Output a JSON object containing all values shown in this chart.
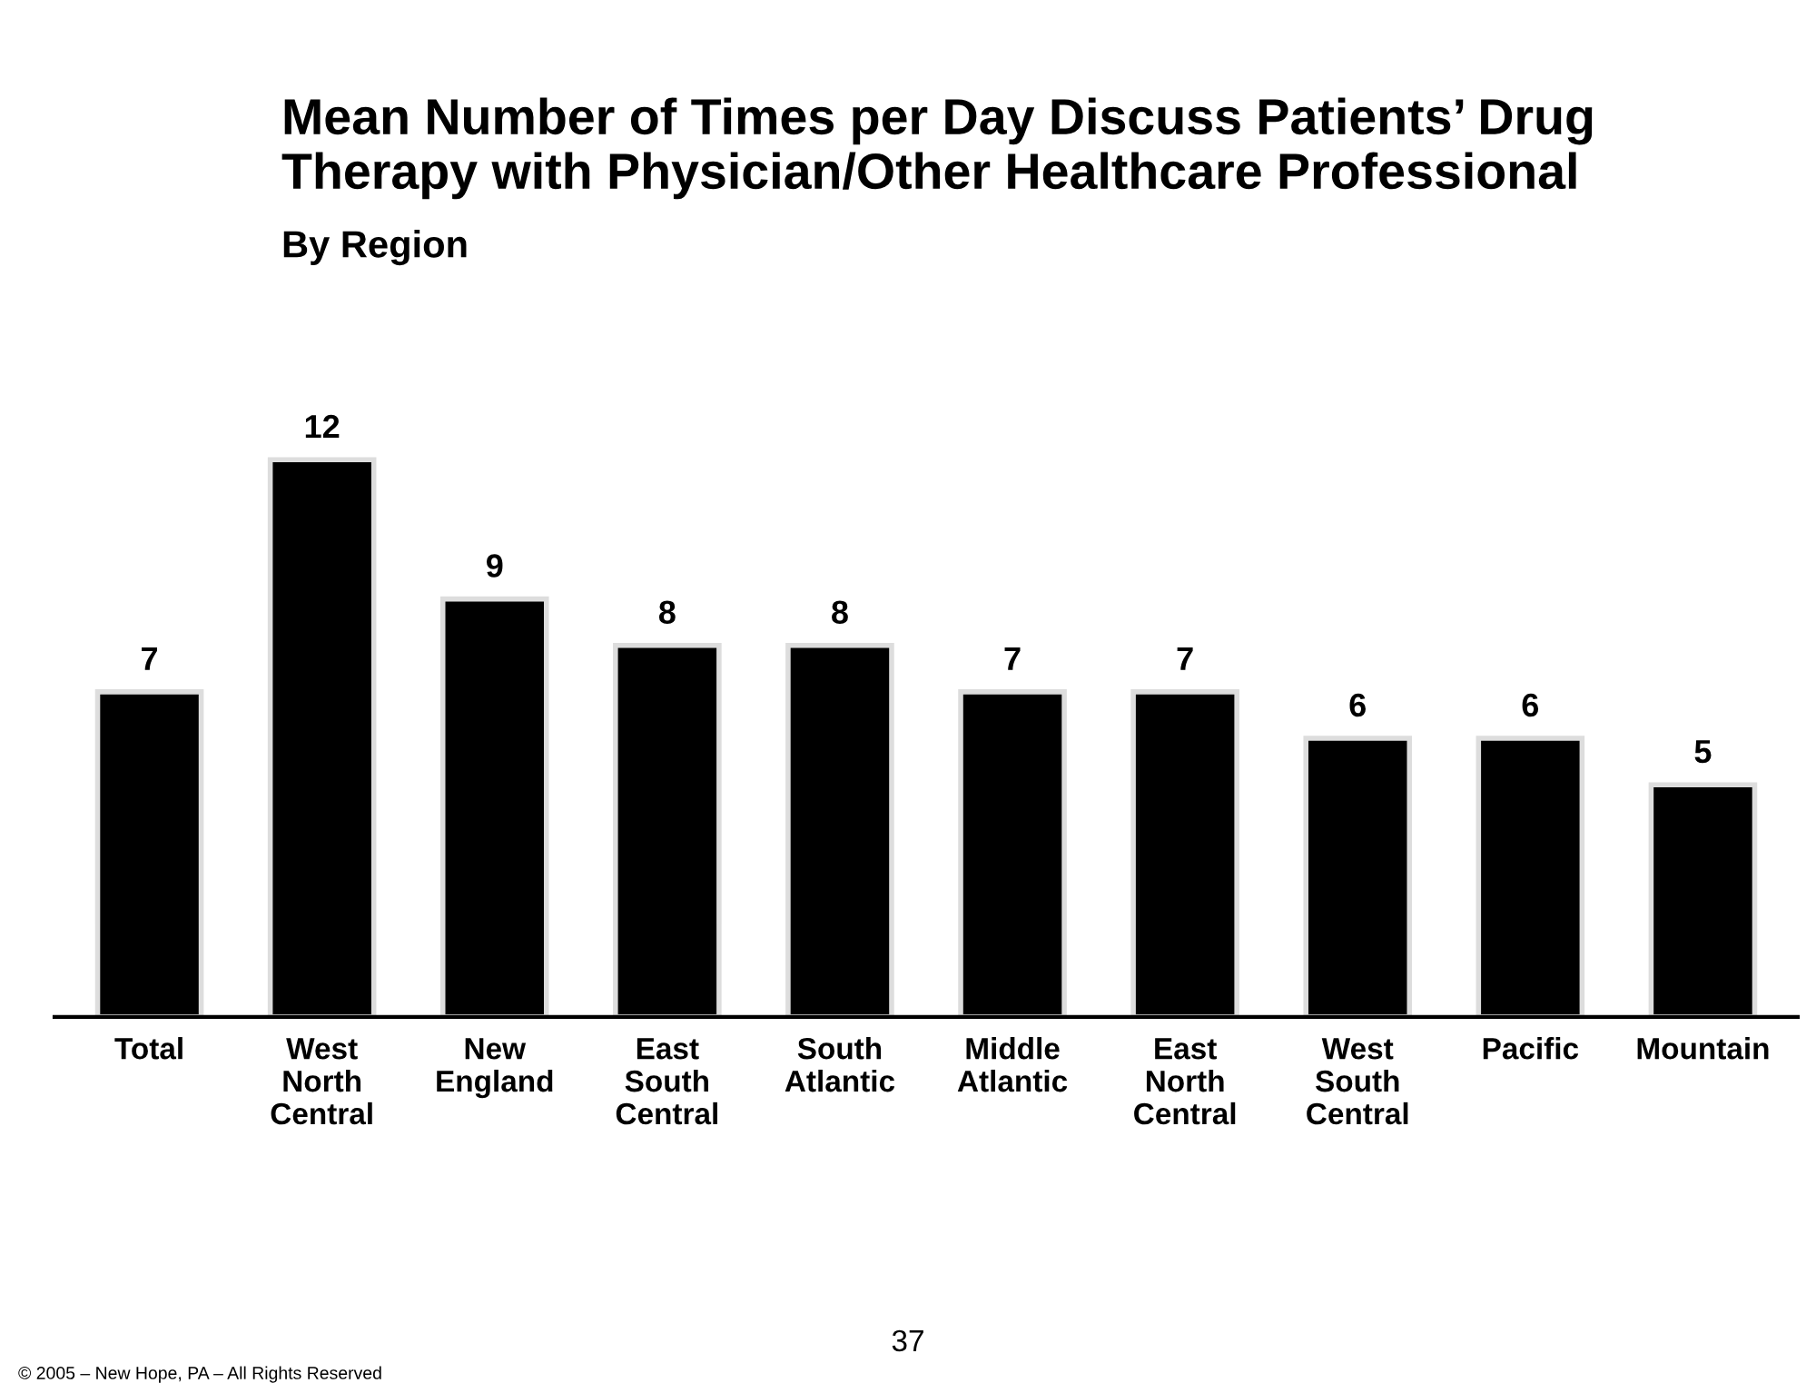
{
  "chart_data": {
    "type": "bar",
    "title": "Mean Number of Times per Day Discuss Patients’ Drug\nTherapy with Physician/Other Healthcare Professional",
    "subtitle": "By Region",
    "categories": [
      "Total",
      "West\nNorth\nCentral",
      "New\nEngland",
      "East\nSouth\nCentral",
      "South\nAtlantic",
      "Middle\nAtlantic",
      "East\nNorth\nCentral",
      "West\nSouth\nCentral",
      "Pacific",
      "Mountain"
    ],
    "values": [
      7,
      12,
      9,
      8,
      8,
      7,
      7,
      6,
      6,
      5
    ],
    "color": "#000000",
    "data_labels": true,
    "grid": false,
    "legend": false,
    "annotations": [
      "37",
      "© 2005 – New Hope, PA – All Rights Reserved"
    ]
  }
}
